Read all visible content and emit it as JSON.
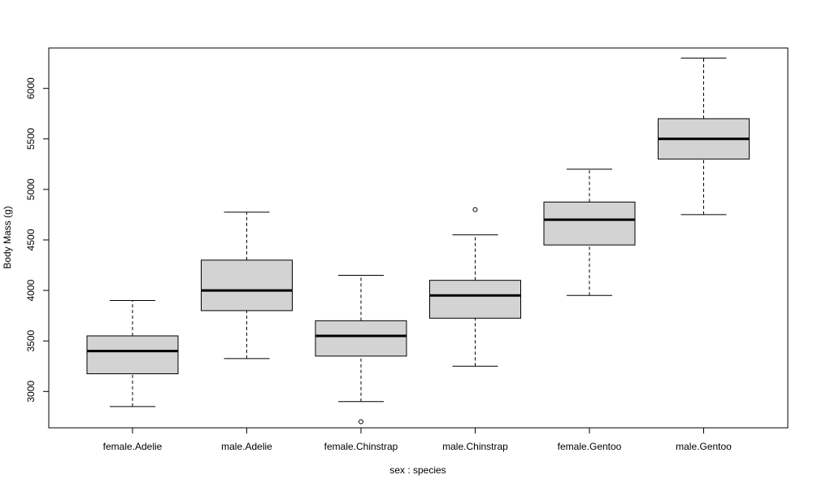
{
  "chart_data": {
    "type": "boxplot",
    "xlabel": "sex : species",
    "ylabel": "Body Mass (g)",
    "ylim": [
      2640,
      6400
    ],
    "yticks": [
      3000,
      3500,
      4000,
      4500,
      5000,
      5500,
      6000
    ],
    "box_fill": "#d3d3d3",
    "groups": [
      {
        "name": "female.Adelie",
        "whisker_low": 2850,
        "q1": 3175,
        "median": 3400,
        "q3": 3550,
        "whisker_high": 3900,
        "outliers": []
      },
      {
        "name": "male.Adelie",
        "whisker_low": 3325,
        "q1": 3800,
        "median": 4000,
        "q3": 4300,
        "whisker_high": 4775,
        "outliers": []
      },
      {
        "name": "female.Chinstrap",
        "whisker_low": 2900,
        "q1": 3350,
        "median": 3550,
        "q3": 3700,
        "whisker_high": 4150,
        "outliers": [
          2700
        ]
      },
      {
        "name": "male.Chinstrap",
        "whisker_low": 3250,
        "q1": 3725,
        "median": 3950,
        "q3": 4100,
        "whisker_high": 4550,
        "outliers": [
          4800
        ]
      },
      {
        "name": "female.Gentoo",
        "whisker_low": 3950,
        "q1": 4450,
        "median": 4700,
        "q3": 4875,
        "whisker_high": 5200,
        "outliers": []
      },
      {
        "name": "male.Gentoo",
        "whisker_low": 4750,
        "q1": 5300,
        "median": 5500,
        "q3": 5700,
        "whisker_high": 6300,
        "outliers": []
      }
    ]
  }
}
